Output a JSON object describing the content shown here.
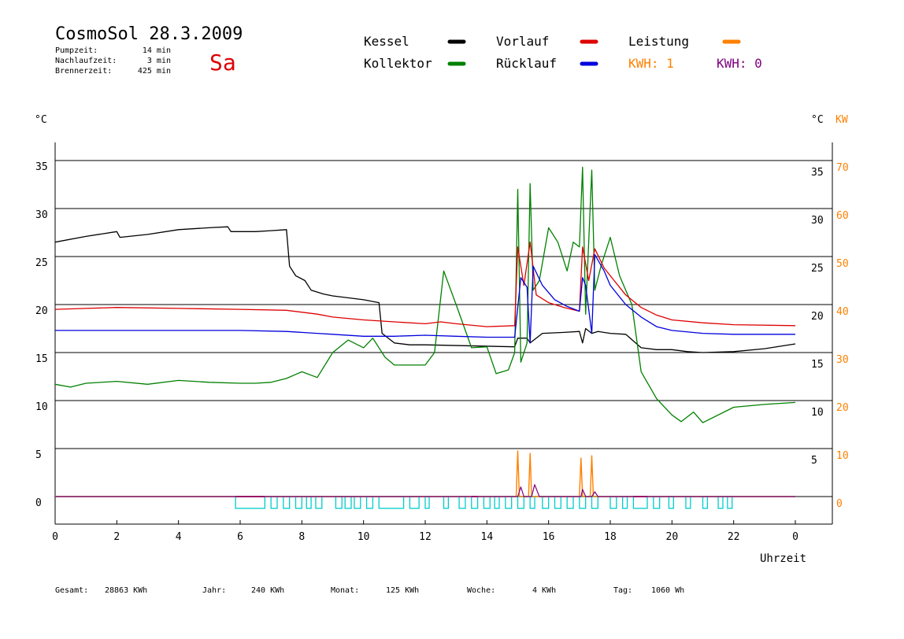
{
  "header": {
    "title": "CosmoSol 28.3.2009",
    "day": "Sa",
    "info": [
      {
        "label": "Pumpzeit:",
        "value": "14 min"
      },
      {
        "label": "Nachlaufzeit:",
        "value": "3 min"
      },
      {
        "label": "Brennerzeit:",
        "value": "425 min"
      }
    ]
  },
  "legend": [
    {
      "label": "Kessel",
      "color": "#000000"
    },
    {
      "label": "Kollektor",
      "color": "#008000"
    },
    {
      "label": "Vorlauf",
      "color": "#dd0000"
    },
    {
      "label": "Rücklauf",
      "color": "#0000dd"
    },
    {
      "label": "Leistung",
      "color": "#ff8000"
    }
  ],
  "kwh": [
    {
      "label": "KWH: 1",
      "color": "#ff8000"
    },
    {
      "label": "KWH: 0",
      "color": "#800080"
    }
  ],
  "axes": {
    "left_unit": "°C",
    "right_unit": "°C",
    "right_unit2": "KW",
    "x_label": "Uhrzeit"
  },
  "footer": [
    {
      "label": "Gesamt:",
      "value": "28863 KWh"
    },
    {
      "label": "Jahr:",
      "value": "240 KWh"
    },
    {
      "label": "Monat:",
      "value": "125 KWh"
    },
    {
      "label": "Woche:",
      "value": "4 KWh"
    },
    {
      "label": "Tag:",
      "value": "1060 Wh"
    }
  ],
  "colors": {
    "kessel": "#000000",
    "kollektor": "#008000",
    "vorlauf": "#dd0000",
    "ruecklauf": "#0000dd",
    "leistung": "#ff8000",
    "kwh2": "#800080",
    "pump": "#00cccc",
    "title_day": "#dd0000"
  },
  "chart_data": {
    "type": "line",
    "xlabel": "Uhrzeit",
    "ylabel": "°C",
    "ylabel_right": "KW",
    "xlim": [
      0,
      24
    ],
    "ylim": [
      0,
      40
    ],
    "y2lim": [
      0,
      80
    ],
    "x_ticks": [
      "0",
      "2",
      "4",
      "6",
      "8",
      "10",
      "12",
      "14",
      "16",
      "18",
      "20",
      "22",
      "0"
    ],
    "y_ticks_left": [
      "0",
      "5",
      "10",
      "15",
      "20",
      "25",
      "30",
      "35"
    ],
    "y_ticks_right": [
      "5",
      "10",
      "15",
      "20",
      "25",
      "30",
      "35"
    ],
    "y2_ticks": [
      "0",
      "10",
      "20",
      "30",
      "40",
      "50",
      "60",
      "70"
    ],
    "grid": true,
    "series": [
      {
        "name": "Kessel",
        "color": "#000000",
        "points": [
          [
            0,
            26.5
          ],
          [
            1,
            27.1
          ],
          [
            2,
            27.6
          ],
          [
            2.1,
            27
          ],
          [
            3,
            27.3
          ],
          [
            4,
            27.8
          ],
          [
            5,
            28
          ],
          [
            5.6,
            28.1
          ],
          [
            5.7,
            27.6
          ],
          [
            6.5,
            27.6
          ],
          [
            7,
            27.7
          ],
          [
            7.5,
            27.8
          ],
          [
            7.6,
            24
          ],
          [
            7.8,
            23
          ],
          [
            8.1,
            22.5
          ],
          [
            8.3,
            21.5
          ],
          [
            8.7,
            21.1
          ],
          [
            9,
            20.9
          ],
          [
            10,
            20.5
          ],
          [
            10.5,
            20.2
          ],
          [
            10.6,
            17
          ],
          [
            11,
            16
          ],
          [
            11.5,
            15.8
          ],
          [
            12,
            15.8
          ],
          [
            14.9,
            15.6
          ],
          [
            15,
            16.5
          ],
          [
            15.3,
            16.5
          ],
          [
            15.4,
            16
          ],
          [
            15.8,
            17
          ],
          [
            16.5,
            17.1
          ],
          [
            17,
            17.2
          ],
          [
            17.1,
            16
          ],
          [
            17.2,
            17.5
          ],
          [
            17.4,
            17
          ],
          [
            17.6,
            17.2
          ],
          [
            18,
            17
          ],
          [
            18.5,
            16.9
          ],
          [
            19,
            15.5
          ],
          [
            19.5,
            15.3
          ],
          [
            20,
            15.3
          ],
          [
            20.5,
            15.1
          ],
          [
            21,
            15
          ],
          [
            22,
            15.1
          ],
          [
            23,
            15.4
          ],
          [
            24,
            15.9
          ]
        ]
      },
      {
        "name": "Kollektor",
        "color": "#008000",
        "points": [
          [
            0,
            11.7
          ],
          [
            0.5,
            11.4
          ],
          [
            1,
            11.8
          ],
          [
            2,
            12
          ],
          [
            3,
            11.7
          ],
          [
            4,
            12.1
          ],
          [
            5,
            11.9
          ],
          [
            6,
            11.8
          ],
          [
            6.5,
            11.8
          ],
          [
            7,
            11.9
          ],
          [
            7.5,
            12.3
          ],
          [
            8,
            13
          ],
          [
            8.5,
            12.4
          ],
          [
            9,
            15
          ],
          [
            9.5,
            16.3
          ],
          [
            10,
            15.5
          ],
          [
            10.3,
            16.5
          ],
          [
            10.7,
            14.5
          ],
          [
            11,
            13.7
          ],
          [
            12,
            13.7
          ],
          [
            12.3,
            15
          ],
          [
            12.6,
            23.5
          ],
          [
            13,
            20
          ],
          [
            13.5,
            15.5
          ],
          [
            14,
            15.6
          ],
          [
            14.3,
            12.8
          ],
          [
            14.7,
            13.2
          ],
          [
            14.9,
            15
          ],
          [
            15,
            32
          ],
          [
            15.1,
            14
          ],
          [
            15.3,
            16
          ],
          [
            15.4,
            32.6
          ],
          [
            15.5,
            21.5
          ],
          [
            15.7,
            22.5
          ],
          [
            16,
            28
          ],
          [
            16.3,
            26.5
          ],
          [
            16.6,
            23.5
          ],
          [
            16.8,
            26.5
          ],
          [
            17,
            26
          ],
          [
            17.1,
            34.3
          ],
          [
            17.2,
            19
          ],
          [
            17.4,
            34
          ],
          [
            17.5,
            21.5
          ],
          [
            17.7,
            24
          ],
          [
            18,
            27
          ],
          [
            18.3,
            23
          ],
          [
            18.7,
            20
          ],
          [
            19,
            13
          ],
          [
            19.5,
            10.2
          ],
          [
            20,
            8.5
          ],
          [
            20.3,
            7.8
          ],
          [
            20.7,
            8.8
          ],
          [
            21,
            7.7
          ],
          [
            22,
            9.3
          ],
          [
            23,
            9.6
          ],
          [
            24,
            9.8
          ]
        ]
      },
      {
        "name": "Vorlauf",
        "color": "#dd0000",
        "points": [
          [
            0,
            19.5
          ],
          [
            1,
            19.6
          ],
          [
            2,
            19.7
          ],
          [
            4,
            19.6
          ],
          [
            6,
            19.5
          ],
          [
            7.5,
            19.4
          ],
          [
            8.5,
            19
          ],
          [
            9,
            18.7
          ],
          [
            10,
            18.4
          ],
          [
            11,
            18.2
          ],
          [
            12,
            18
          ],
          [
            12.5,
            18.2
          ],
          [
            13,
            18
          ],
          [
            14,
            17.7
          ],
          [
            14.9,
            17.8
          ],
          [
            15,
            26
          ],
          [
            15.2,
            22
          ],
          [
            15.4,
            26.5
          ],
          [
            15.6,
            21
          ],
          [
            16,
            20.2
          ],
          [
            16.5,
            19.7
          ],
          [
            17,
            19.3
          ],
          [
            17.1,
            26
          ],
          [
            17.3,
            22.5
          ],
          [
            17.5,
            25.8
          ],
          [
            17.8,
            23.8
          ],
          [
            18,
            23
          ],
          [
            18.5,
            21
          ],
          [
            19,
            19.7
          ],
          [
            19.5,
            18.9
          ],
          [
            20,
            18.4
          ],
          [
            21,
            18.1
          ],
          [
            22,
            17.9
          ],
          [
            24,
            17.8
          ]
        ]
      },
      {
        "name": "Rücklauf",
        "color": "#0000dd",
        "points": [
          [
            0,
            17.3
          ],
          [
            2,
            17.3
          ],
          [
            4,
            17.3
          ],
          [
            6,
            17.3
          ],
          [
            7.5,
            17.2
          ],
          [
            8.5,
            17
          ],
          [
            9,
            16.9
          ],
          [
            10,
            16.7
          ],
          [
            11,
            16.7
          ],
          [
            12,
            16.8
          ],
          [
            13,
            16.7
          ],
          [
            14,
            16.6
          ],
          [
            14.9,
            16.6
          ],
          [
            15.1,
            22.8
          ],
          [
            15.3,
            21.8
          ],
          [
            15.4,
            16
          ],
          [
            15.5,
            24
          ],
          [
            15.8,
            22
          ],
          [
            16.2,
            20.5
          ],
          [
            16.6,
            19.8
          ],
          [
            17,
            19.3
          ],
          [
            17.1,
            22.8
          ],
          [
            17.2,
            22
          ],
          [
            17.4,
            17
          ],
          [
            17.5,
            25.2
          ],
          [
            17.8,
            23.5
          ],
          [
            18,
            22
          ],
          [
            18.5,
            20
          ],
          [
            19,
            18.7
          ],
          [
            19.5,
            17.7
          ],
          [
            20,
            17.3
          ],
          [
            21,
            17
          ],
          [
            22,
            16.9
          ],
          [
            24,
            16.9
          ]
        ]
      }
    ],
    "power_series": {
      "name": "Leistung",
      "color": "#ff8000",
      "points": [
        [
          0,
          0
        ],
        [
          14.95,
          0
        ],
        [
          15.0,
          9.5
        ],
        [
          15.05,
          0
        ],
        [
          15.35,
          0
        ],
        [
          15.4,
          9
        ],
        [
          15.45,
          0
        ],
        [
          17.0,
          0
        ],
        [
          17.05,
          8
        ],
        [
          17.1,
          0
        ],
        [
          17.35,
          0
        ],
        [
          17.4,
          8.5
        ],
        [
          17.45,
          0
        ],
        [
          24,
          0
        ]
      ]
    },
    "power_series2": {
      "name": "KWH 0",
      "color": "#800080",
      "points": [
        [
          0,
          0
        ],
        [
          15.0,
          0
        ],
        [
          15.1,
          2
        ],
        [
          15.2,
          0
        ],
        [
          15.45,
          0
        ],
        [
          15.55,
          2.5
        ],
        [
          15.7,
          0
        ],
        [
          17.05,
          0
        ],
        [
          17.1,
          1.5
        ],
        [
          17.2,
          0
        ],
        [
          17.4,
          0
        ],
        [
          17.5,
          1
        ],
        [
          17.6,
          0
        ],
        [
          24,
          0
        ]
      ]
    },
    "pump_intervals": [
      [
        5.85,
        6.8
      ],
      [
        7.0,
        7.2
      ],
      [
        7.4,
        7.6
      ],
      [
        7.8,
        8.0
      ],
      [
        8.15,
        8.3
      ],
      [
        8.45,
        8.65
      ],
      [
        9.1,
        9.3
      ],
      [
        9.4,
        9.6
      ],
      [
        9.7,
        9.9
      ],
      [
        10.1,
        10.3
      ],
      [
        10.5,
        11.3
      ],
      [
        11.5,
        11.8
      ],
      [
        12,
        12.1
      ],
      [
        12.6,
        12.75
      ],
      [
        13.1,
        13.3
      ],
      [
        13.5,
        13.7
      ],
      [
        13.9,
        14.1
      ],
      [
        14.25,
        14.4
      ],
      [
        14.6,
        14.8
      ],
      [
        15.0,
        15.2
      ],
      [
        15.4,
        15.55
      ],
      [
        15.8,
        16
      ],
      [
        16.2,
        16.4
      ],
      [
        16.6,
        16.8
      ],
      [
        17.0,
        17.2
      ],
      [
        17.4,
        17.6
      ],
      [
        18.0,
        18.2
      ],
      [
        18.4,
        18.55
      ],
      [
        18.75,
        19.2
      ],
      [
        19.4,
        19.6
      ],
      [
        19.9,
        20.05
      ],
      [
        20.45,
        20.6
      ],
      [
        21.0,
        21.15
      ],
      [
        21.5,
        21.65
      ],
      [
        21.8,
        21.95
      ]
    ]
  }
}
